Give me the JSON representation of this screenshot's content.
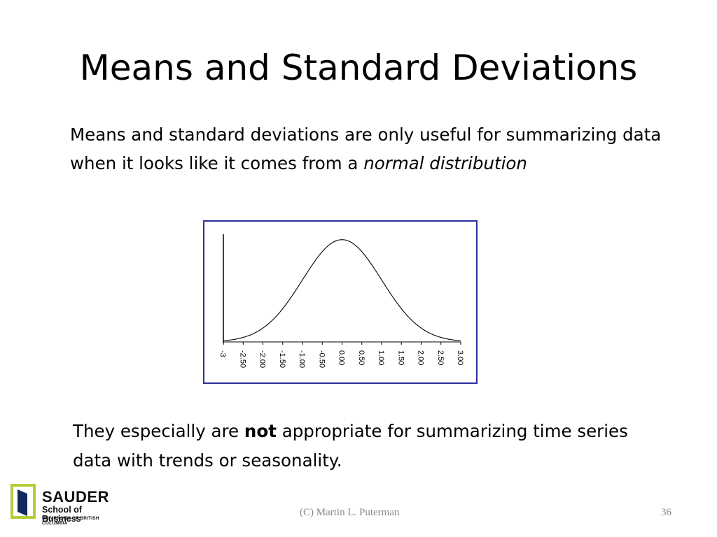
{
  "slide": {
    "title": "Means and Standard Deviations",
    "para1": {
      "text_plain": "Means and standard deviations are only useful for summarizing data when it looks like it comes from a ",
      "text_italic": "normal distribution"
    },
    "para2": {
      "text_before": "They especially are ",
      "text_bold": "not",
      "text_after": " appropriate for summarizing time series data with trends or seasonality."
    },
    "footer": "(C) Martin  L. Puterman",
    "page_number": "36"
  },
  "logo": {
    "name": "SAUDER",
    "school": "School of Business",
    "university": "UNIVERSITY OF BRITISH COLUMBIA",
    "colors": {
      "green": "#b5cc3a",
      "navy": "#0f2a5c"
    }
  },
  "chart_data": {
    "type": "line",
    "title": "",
    "xlabel": "",
    "ylabel": "",
    "xlim": [
      -3,
      3
    ],
    "ylim": [
      0,
      0.42
    ],
    "grid": false,
    "legend": "none",
    "curve": "standard normal density",
    "tick_labels": [
      "-3",
      "-2.50",
      "-2.00",
      "-1.50",
      "-1.00",
      "-0.50",
      "0.00",
      "0.50",
      "1.00",
      "1.50",
      "2.00",
      "2.50",
      "3.00"
    ],
    "tick_values": [
      -3,
      -2.5,
      -2,
      -1.5,
      -1,
      -0.5,
      0,
      0.5,
      1,
      1.5,
      2,
      2.5,
      3
    ],
    "border_color": "#2b2f9c"
  }
}
